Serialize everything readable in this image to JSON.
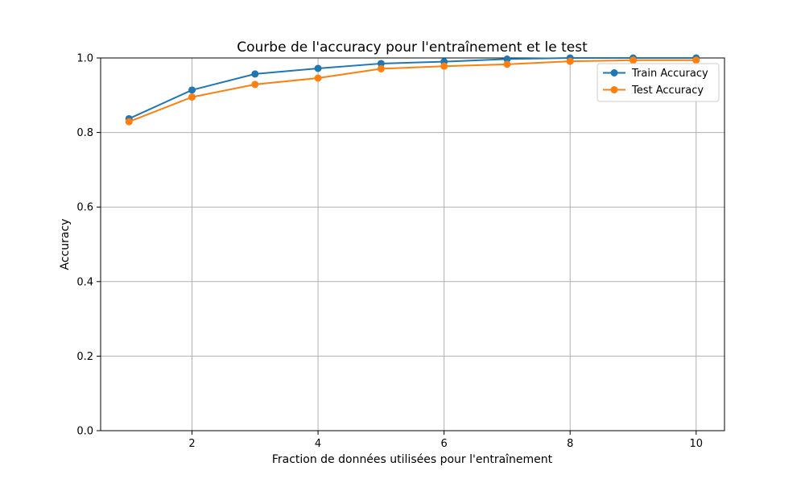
{
  "chart_data": {
    "type": "line",
    "title": "Courbe de l'accuracy pour l'entraînement et le test",
    "xlabel": "Fraction de données utilisées pour l'entraînement",
    "ylabel": "Accuracy",
    "x": [
      1,
      2,
      3,
      4,
      5,
      6,
      7,
      8,
      9,
      10
    ],
    "xlim": [
      0.55,
      10.45
    ],
    "ylim": [
      0,
      1.0
    ],
    "xticks": [
      2,
      4,
      6,
      8,
      10
    ],
    "yticks": [
      0.0,
      0.2,
      0.4,
      0.6,
      0.8,
      1.0
    ],
    "xtick_labels": [
      "2",
      "4",
      "6",
      "8",
      "10"
    ],
    "ytick_labels": [
      "0.0",
      "0.2",
      "0.4",
      "0.6",
      "0.8",
      "1.0"
    ],
    "grid": true,
    "legend_position": "top-right",
    "series": [
      {
        "name": "Train Accuracy",
        "color": "#1f77b4",
        "marker": "circle",
        "values": [
          0.837,
          0.914,
          0.957,
          0.972,
          0.985,
          0.99,
          0.997,
          1.0,
          1.0,
          1.0
        ]
      },
      {
        "name": "Test Accuracy",
        "color": "#ff7f0e",
        "marker": "circle",
        "values": [
          0.829,
          0.895,
          0.929,
          0.946,
          0.971,
          0.978,
          0.983,
          0.991,
          0.994,
          0.994
        ]
      }
    ]
  }
}
